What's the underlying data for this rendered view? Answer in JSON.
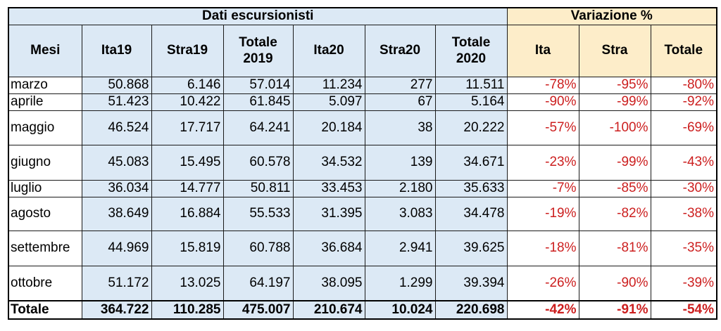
{
  "header": {
    "group_left": "Dati escursionisti",
    "group_right": "Variazione %"
  },
  "columns": [
    "Mesi",
    "Ita19",
    "Stra19",
    "Totale 2019",
    "Ita20",
    "Stra20",
    "Totale 2020",
    "Ita",
    "Stra",
    "Totale"
  ],
  "column_lines": [
    [
      "Mesi"
    ],
    [
      "Ita19"
    ],
    [
      "Stra19"
    ],
    [
      "Totale",
      "2019"
    ],
    [
      "Ita20"
    ],
    [
      "Stra20"
    ],
    [
      "Totale",
      "2020"
    ],
    [
      "Ita"
    ],
    [
      "Stra"
    ],
    [
      "Totale"
    ]
  ],
  "rows": [
    {
      "mese": "marzo",
      "ita19": "50.868",
      "stra19": "6.146",
      "tot19": "57.014",
      "ita20": "11.234",
      "stra20": "277",
      "tot20": "11.511",
      "var_ita": "-78%",
      "var_stra": "-95%",
      "var_tot": "-80%"
    },
    {
      "mese": "aprile",
      "ita19": "51.423",
      "stra19": "10.422",
      "tot19": "61.845",
      "ita20": "5.097",
      "stra20": "67",
      "tot20": "5.164",
      "var_ita": "-90%",
      "var_stra": "-99%",
      "var_tot": "-92%"
    },
    {
      "mese": "maggio",
      "ita19": "46.524",
      "stra19": "17.717",
      "tot19": "64.241",
      "ita20": "20.184",
      "stra20": "38",
      "tot20": "20.222",
      "var_ita": "-57%",
      "var_stra": "-100%",
      "var_tot": "-69%"
    },
    {
      "mese": "giugno",
      "ita19": "45.083",
      "stra19": "15.495",
      "tot19": "60.578",
      "ita20": "34.532",
      "stra20": "139",
      "tot20": "34.671",
      "var_ita": "-23%",
      "var_stra": "-99%",
      "var_tot": "-43%"
    },
    {
      "mese": "luglio",
      "ita19": "36.034",
      "stra19": "14.777",
      "tot19": "50.811",
      "ita20": "33.453",
      "stra20": "2.180",
      "tot20": "35.633",
      "var_ita": "-7%",
      "var_stra": "-85%",
      "var_tot": "-30%"
    },
    {
      "mese": "agosto",
      "ita19": "38.649",
      "stra19": "16.884",
      "tot19": "55.533",
      "ita20": "31.395",
      "stra20": "3.083",
      "tot20": "34.478",
      "var_ita": "-19%",
      "var_stra": "-82%",
      "var_tot": "-38%"
    },
    {
      "mese": "settembre",
      "ita19": "44.969",
      "stra19": "15.819",
      "tot19": "60.788",
      "ita20": "36.684",
      "stra20": "2.941",
      "tot20": "39.625",
      "var_ita": "-18%",
      "var_stra": "-81%",
      "var_tot": "-35%"
    },
    {
      "mese": "ottobre",
      "ita19": "51.172",
      "stra19": "13.025",
      "tot19": "64.197",
      "ita20": "38.095",
      "stra20": "1.299",
      "tot20": "39.394",
      "var_ita": "-26%",
      "var_stra": "-90%",
      "var_tot": "-39%"
    }
  ],
  "total": {
    "mese": "Totale",
    "ita19": "364.722",
    "stra19": "110.285",
    "tot19": "475.007",
    "ita20": "210.674",
    "stra20": "10.024",
    "tot20": "220.698",
    "var_ita": "-42%",
    "var_stra": "-91%",
    "var_tot": "-54%"
  },
  "colors": {
    "blue_fill": "#dce9f5",
    "tan_fill": "#fdedc9",
    "negative_text": "#cc1f1f"
  }
}
